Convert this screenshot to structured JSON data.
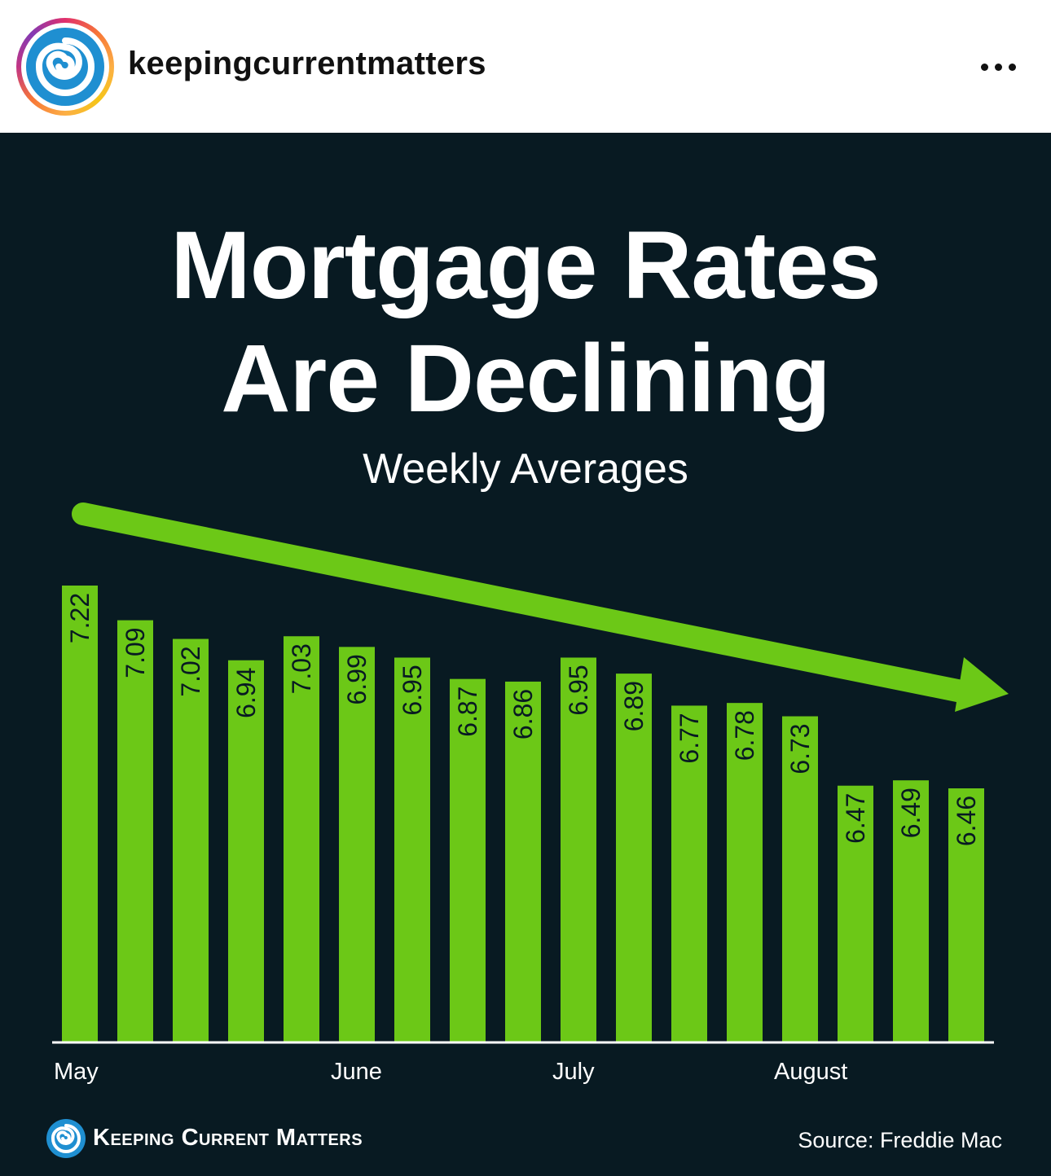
{
  "post": {
    "username": "keepingcurrentmatters",
    "avatar_icon": "swirl-logo-icon",
    "more_icon": "more-options-icon"
  },
  "colors": {
    "background": "#081a22",
    "bar": "#6cc817",
    "text": "#ffffff",
    "logo_blue": "#1f8fd1"
  },
  "infographic": {
    "title_line1": "Mortgage Rates",
    "title_line2": "Are Declining",
    "subtitle": "Weekly Averages",
    "brand": "Keeping Current Matters",
    "source": "Source: Freddie Mac"
  },
  "chart_data": {
    "type": "bar",
    "title": "Mortgage Rates Are Declining",
    "subtitle": "Weekly Averages",
    "values": [
      7.22,
      7.09,
      7.02,
      6.94,
      7.03,
      6.99,
      6.95,
      6.87,
      6.86,
      6.95,
      6.89,
      6.77,
      6.78,
      6.73,
      6.47,
      6.49,
      6.46
    ],
    "value_labels": [
      "7.22",
      "7.09",
      "7.02",
      "6.94",
      "7.03",
      "6.99",
      "6.95",
      "6.87",
      "6.86",
      "6.95",
      "6.89",
      "6.77",
      "6.78",
      "6.73",
      "6.47",
      "6.49",
      "6.46"
    ],
    "month_labels": [
      {
        "label": "May",
        "bar_index": 0
      },
      {
        "label": "June",
        "bar_index": 5
      },
      {
        "label": "July",
        "bar_index": 9
      },
      {
        "label": "August",
        "bar_index": 13
      }
    ],
    "xlabel": "",
    "ylabel": "",
    "trend": "declining",
    "grid": false,
    "legend": "none"
  }
}
